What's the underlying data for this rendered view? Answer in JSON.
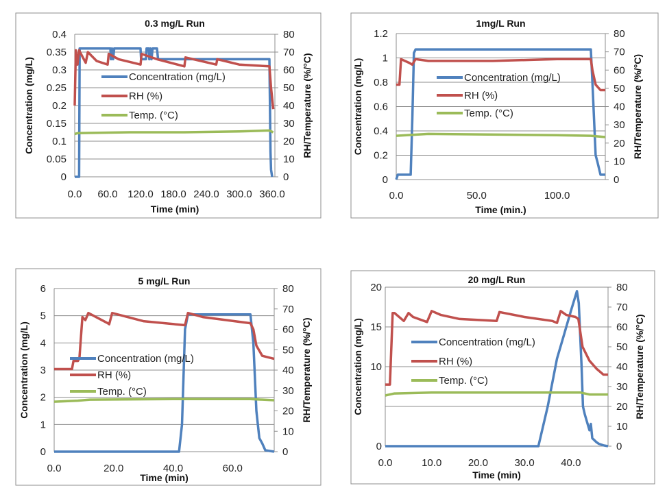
{
  "chart_data": [
    {
      "type": "line",
      "title": "0.3 mg/L Run",
      "xlabel": "Time (min)",
      "ylabel": "Concentration (mg/L)",
      "y2label": "RH/Temperature (%/°C)",
      "xlim": [
        0,
        365
      ],
      "ylim": [
        0,
        0.4
      ],
      "y2lim": [
        0,
        80
      ],
      "grid": true,
      "legend": "inside-upper-center",
      "x_ticks": [
        0,
        60,
        120,
        180,
        240,
        300,
        360
      ],
      "x_tick_labels": [
        "0.0",
        "60.0",
        "120.0",
        "180.0",
        "240.0",
        "300.0",
        "360.0"
      ],
      "y_ticks": [
        0,
        0.05,
        0.1,
        0.15,
        0.2,
        0.25,
        0.3,
        0.35,
        0.4
      ],
      "y_tick_labels": [
        "0",
        "0.05",
        "0.1",
        "0.15",
        "0.2",
        "0.25",
        "0.3",
        "0.35",
        "0.4"
      ],
      "y2_ticks": [
        0,
        10,
        20,
        30,
        40,
        50,
        60,
        70,
        80
      ],
      "y2_tick_labels": [
        "0",
        "10",
        "20",
        "30",
        "40",
        "50",
        "60",
        "70",
        "80"
      ],
      "series": [
        {
          "name": "Concentration (mg/L)",
          "axis": "left",
          "color": "#4f81bd",
          "points": [
            [
              0,
              0
            ],
            [
              8,
              0
            ],
            [
              9,
              0.36
            ],
            [
              65,
              0.36
            ],
            [
              66,
              0.33
            ],
            [
              68,
              0.36
            ],
            [
              70,
              0.33
            ],
            [
              72,
              0.36
            ],
            [
              120,
              0.36
            ],
            [
              121,
              0.33
            ],
            [
              130,
              0.33
            ],
            [
              131,
              0.36
            ],
            [
              135,
              0.36
            ],
            [
              136,
              0.33
            ],
            [
              138,
              0.36
            ],
            [
              140,
              0.33
            ],
            [
              142,
              0.36
            ],
            [
              150,
              0.36
            ],
            [
              152,
              0.33
            ],
            [
              355,
              0.33
            ],
            [
              357,
              0.07
            ],
            [
              358,
              0.02
            ],
            [
              360,
              0
            ]
          ]
        },
        {
          "name": "RH (%)",
          "axis": "right",
          "color": "#c0504d",
          "points": [
            [
              0,
              40
            ],
            [
              2,
              71
            ],
            [
              5,
              63
            ],
            [
              8,
              71
            ],
            [
              20,
              64
            ],
            [
              24,
              70
            ],
            [
              40,
              65
            ],
            [
              60,
              63
            ],
            [
              62,
              69
            ],
            [
              80,
              66
            ],
            [
              120,
              63
            ],
            [
              122,
              69
            ],
            [
              150,
              66
            ],
            [
              200,
              62
            ],
            [
              202,
              67
            ],
            [
              258,
              63
            ],
            [
              260,
              66
            ],
            [
              300,
              63
            ],
            [
              355,
              62
            ],
            [
              358,
              50
            ],
            [
              362,
              38
            ]
          ]
        },
        {
          "name": "Temp. (°C)",
          "axis": "right",
          "color": "#9bbb59",
          "points": [
            [
              0,
              24
            ],
            [
              5,
              24.5
            ],
            [
              100,
              25
            ],
            [
              200,
              25
            ],
            [
              300,
              25.5
            ],
            [
              355,
              26
            ],
            [
              362,
              25
            ]
          ]
        }
      ]
    },
    {
      "type": "line",
      "title": "1mg/L Run",
      "xlabel": "Time (min.)",
      "ylabel": "Concentration (mg/L)",
      "y2label": "RH/Temperature (%/°C)",
      "xlim": [
        0,
        130
      ],
      "ylim": [
        0,
        1.2
      ],
      "y2lim": [
        0,
        80
      ],
      "grid": true,
      "legend": "inside-upper-center",
      "x_ticks": [
        0,
        50,
        100
      ],
      "x_tick_labels": [
        "0.0",
        "50.0",
        "100.0"
      ],
      "y_ticks": [
        0,
        0.2,
        0.4,
        0.6,
        0.8,
        1,
        1.2
      ],
      "y_tick_labels": [
        "0",
        "0.2",
        "0.4",
        "0.6",
        "0.8",
        "1",
        "1.2"
      ],
      "y2_ticks": [
        0,
        10,
        20,
        30,
        40,
        50,
        60,
        70,
        80
      ],
      "y2_tick_labels": [
        "0",
        "10",
        "20",
        "30",
        "40",
        "50",
        "60",
        "70",
        "80"
      ],
      "series": [
        {
          "name": "Concentration (mg/L)",
          "axis": "left",
          "color": "#4f81bd",
          "points": [
            [
              0,
              0
            ],
            [
              1,
              0.04
            ],
            [
              9,
              0.04
            ],
            [
              10,
              0.5
            ],
            [
              11,
              1.04
            ],
            [
              12,
              1.07
            ],
            [
              121,
              1.07
            ],
            [
              122,
              0.8
            ],
            [
              124,
              0.2
            ],
            [
              125,
              0.15
            ],
            [
              127,
              0.04
            ],
            [
              130,
              0.04
            ]
          ]
        },
        {
          "name": "RH (%)",
          "axis": "right",
          "color": "#c0504d",
          "points": [
            [
              0,
              52
            ],
            [
              2,
              52
            ],
            [
              3,
              66
            ],
            [
              8,
              64
            ],
            [
              10,
              63
            ],
            [
              12,
              66
            ],
            [
              20,
              65
            ],
            [
              60,
              65
            ],
            [
              100,
              66
            ],
            [
              121,
              66
            ],
            [
              122,
              60
            ],
            [
              124,
              52
            ],
            [
              127,
              49
            ],
            [
              130,
              49
            ]
          ]
        },
        {
          "name": "Temp. (°C)",
          "axis": "right",
          "color": "#9bbb59",
          "points": [
            [
              0,
              24
            ],
            [
              20,
              25
            ],
            [
              100,
              24.3
            ],
            [
              121,
              24
            ],
            [
              130,
              23.3
            ]
          ]
        }
      ]
    },
    {
      "type": "line",
      "title": "5 mg/L Run",
      "xlabel": "Time (min)",
      "ylabel": "Concentration (mg/L)",
      "y2label": "RH/Temperature (%/°C)",
      "xlim": [
        0,
        74
      ],
      "ylim": [
        0,
        6
      ],
      "y2lim": [
        0,
        80
      ],
      "grid": true,
      "legend": "inside-center-left",
      "x_ticks": [
        0,
        20,
        40,
        60
      ],
      "x_tick_labels": [
        "0.0",
        "20.0",
        "40.0",
        "60.0"
      ],
      "y_ticks": [
        0,
        1,
        2,
        3,
        4,
        5,
        6
      ],
      "y_tick_labels": [
        "0",
        "1",
        "2",
        "3",
        "4",
        "5",
        "6"
      ],
      "y2_ticks": [
        0,
        10,
        20,
        30,
        40,
        50,
        60,
        70,
        80
      ],
      "y2_tick_labels": [
        "0",
        "10",
        "20",
        "30",
        "40",
        "50",
        "60",
        "70",
        "80"
      ],
      "series": [
        {
          "name": "Concentration (mg/L)",
          "axis": "left",
          "color": "#4f81bd",
          "points": [
            [
              0,
              0
            ],
            [
              42,
              0
            ],
            [
              43,
              1
            ],
            [
              44,
              4.5
            ],
            [
              45,
              5.05
            ],
            [
              50,
              5.05
            ],
            [
              66,
              5.05
            ],
            [
              67,
              4
            ],
            [
              68,
              1.5
            ],
            [
              69,
              0.5
            ],
            [
              70,
              0.3
            ],
            [
              71,
              0.05
            ],
            [
              74,
              0
            ]
          ]
        },
        {
          "name": "RH (%)",
          "axis": "right",
          "color": "#c0504d",
          "points": [
            [
              0,
              40.5
            ],
            [
              6,
              40.5
            ],
            [
              6.5,
              44.5
            ],
            [
              8,
              44.5
            ],
            [
              8.5,
              46
            ],
            [
              9.5,
              66
            ],
            [
              10.5,
              64.5
            ],
            [
              11.5,
              68
            ],
            [
              18,
              63
            ],
            [
              18.5,
              62.5
            ],
            [
              19.5,
              68
            ],
            [
              30,
              64
            ],
            [
              44,
              62
            ],
            [
              45,
              68
            ],
            [
              50,
              66
            ],
            [
              66,
              63
            ],
            [
              67,
              60
            ],
            [
              68,
              52
            ],
            [
              70,
              47
            ],
            [
              74,
              45.5
            ]
          ]
        },
        {
          "name": "Temp. (°C)",
          "axis": "right",
          "color": "#9bbb59",
          "points": [
            [
              0,
              24.5
            ],
            [
              8,
              25
            ],
            [
              12,
              25.5
            ],
            [
              40,
              25.8
            ],
            [
              66,
              25.8
            ],
            [
              74,
              25.2
            ]
          ]
        }
      ]
    },
    {
      "type": "line",
      "title": "20 mg/L Run",
      "xlabel": "Time (min)",
      "ylabel": "Concentration (mg/L)",
      "y2label": "RH/Temperature (%/°C)",
      "xlim": [
        0,
        48
      ],
      "ylim": [
        0,
        20
      ],
      "y2lim": [
        0,
        80
      ],
      "grid": true,
      "legend": "inside-center-left",
      "x_ticks": [
        0,
        10,
        20,
        30,
        40
      ],
      "x_tick_labels": [
        "0.0",
        "10.0",
        "20.0",
        "30.0",
        "40.0"
      ],
      "y_ticks": [
        0,
        10,
        15,
        20
      ],
      "y_tick_labels": [
        "0",
        "10",
        "15",
        "20"
      ],
      "y_grid": [
        5,
        10,
        15
      ],
      "y2_ticks": [
        0,
        10,
        20,
        30,
        40,
        50,
        60,
        70,
        80
      ],
      "y2_tick_labels": [
        "0",
        "10",
        "20",
        "30",
        "40",
        "50",
        "60",
        "70",
        "80"
      ],
      "series": [
        {
          "name": "Concentration (mg/L)",
          "axis": "left",
          "color": "#4f81bd",
          "points": [
            [
              0,
              0
            ],
            [
              33,
              0
            ],
            [
              35,
              5
            ],
            [
              37,
              11
            ],
            [
              38.5,
              14
            ],
            [
              40,
              17
            ],
            [
              41.3,
              19.5
            ],
            [
              41.7,
              18
            ],
            [
              42.3,
              10
            ],
            [
              42.6,
              5
            ],
            [
              43,
              4
            ],
            [
              44,
              2
            ],
            [
              44.3,
              2.8
            ],
            [
              44.6,
              1
            ],
            [
              45.5,
              0.5
            ],
            [
              46,
              0.3
            ],
            [
              47,
              0.1
            ],
            [
              48,
              0
            ]
          ]
        },
        {
          "name": "RH (%)",
          "axis": "right",
          "color": "#c0504d",
          "points": [
            [
              0,
              31
            ],
            [
              1,
              31
            ],
            [
              1.6,
              67
            ],
            [
              2,
              67
            ],
            [
              4,
              63
            ],
            [
              5,
              67
            ],
            [
              6,
              65
            ],
            [
              9,
              62.5
            ],
            [
              10,
              68
            ],
            [
              12,
              66
            ],
            [
              16,
              64
            ],
            [
              24,
              63
            ],
            [
              24.6,
              67.5
            ],
            [
              30,
              65
            ],
            [
              36,
              63
            ],
            [
              37,
              62
            ],
            [
              37.8,
              68
            ],
            [
              39,
              66
            ],
            [
              41,
              65
            ],
            [
              41.6,
              64
            ],
            [
              42.5,
              50
            ],
            [
              44,
              43
            ],
            [
              45.5,
              39
            ],
            [
              47,
              36
            ],
            [
              48,
              36
            ]
          ]
        },
        {
          "name": "Temp. (°C)",
          "axis": "right",
          "color": "#9bbb59",
          "points": [
            [
              0,
              25.5
            ],
            [
              2,
              26.5
            ],
            [
              10,
              27
            ],
            [
              40,
              27
            ],
            [
              42,
              27
            ],
            [
              44,
              26
            ],
            [
              48,
              26
            ]
          ]
        }
      ]
    }
  ]
}
